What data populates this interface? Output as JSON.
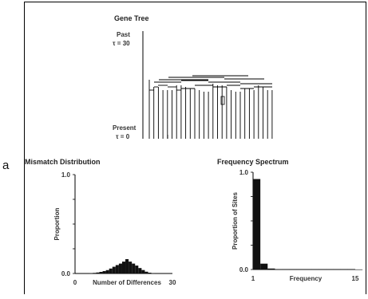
{
  "side_label": "a",
  "gene_tree": {
    "title": "Gene Tree",
    "past_label": "Past",
    "past_tau": "τ = 30",
    "present_label": "Present",
    "present_tau": "τ = 0"
  },
  "chart_data": [
    {
      "type": "bar",
      "title": "Mismatch Distribution",
      "xlabel": "Number of Differences",
      "ylabel": "Proportion",
      "xlim": [
        0,
        30
      ],
      "ylim": [
        0,
        1.0
      ],
      "x_ticks": [
        "0",
        "30"
      ],
      "y_ticks": [
        "0.0",
        "1.0"
      ],
      "categories": [
        5,
        6,
        7,
        8,
        9,
        10,
        11,
        12,
        13,
        14,
        15,
        16,
        17,
        18,
        19,
        20,
        21,
        22,
        23,
        24
      ],
      "values": [
        0.003,
        0.006,
        0.01,
        0.016,
        0.024,
        0.034,
        0.05,
        0.068,
        0.085,
        0.1,
        0.12,
        0.145,
        0.12,
        0.1,
        0.08,
        0.055,
        0.035,
        0.018,
        0.008,
        0.003
      ]
    },
    {
      "type": "bar",
      "title": "Frequency Spectrum",
      "xlabel": "Frequency",
      "ylabel": "Proportion of Sites",
      "xlim": [
        1,
        15
      ],
      "ylim": [
        0,
        1.0
      ],
      "x_ticks": [
        "1",
        "15"
      ],
      "y_ticks": [
        "0.0",
        "1.0"
      ],
      "categories": [
        1,
        2,
        3,
        4,
        5,
        6,
        7,
        8,
        9,
        10,
        11,
        12,
        13,
        14,
        15
      ],
      "values": [
        0.93,
        0.06,
        0.01,
        0.003,
        0.002,
        0.002,
        0.001,
        0.001,
        0.001,
        0.001,
        0.001,
        0.001,
        0.001,
        0.001,
        0.001
      ]
    }
  ]
}
